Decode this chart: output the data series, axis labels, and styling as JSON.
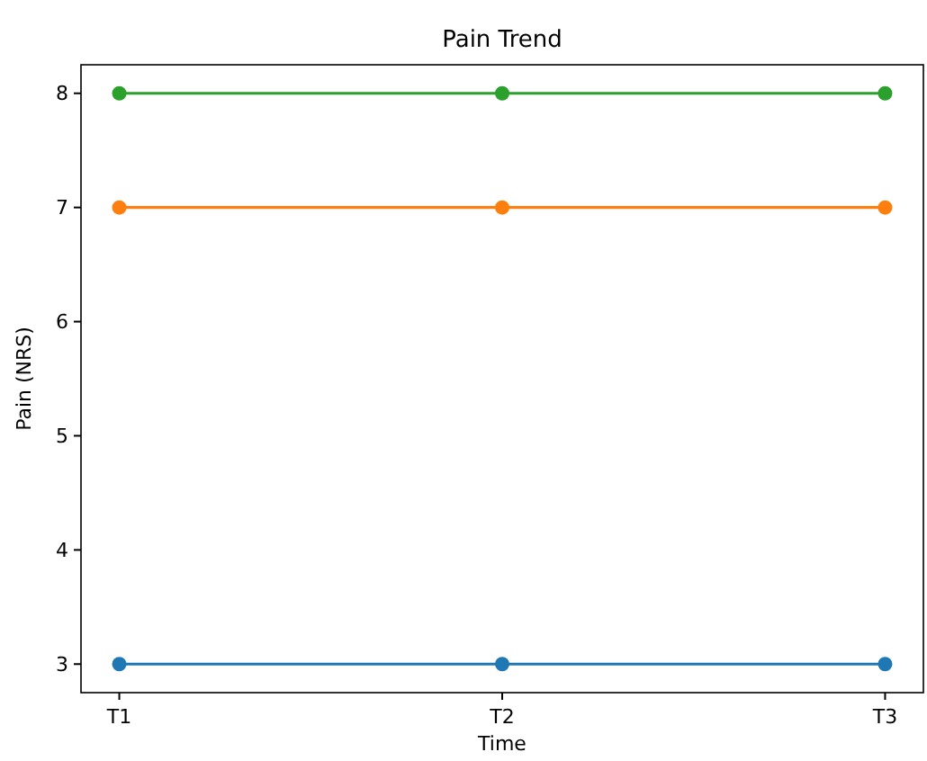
{
  "chart_data": {
    "type": "line",
    "title": "Pain Trend",
    "xlabel": "Time",
    "ylabel": "Pain (NRS)",
    "categories": [
      "T1",
      "T2",
      "T3"
    ],
    "series": [
      {
        "color": "#1f77b4",
        "values": [
          3,
          3,
          3
        ]
      },
      {
        "color": "#ff7f0e",
        "values": [
          7,
          7,
          7
        ]
      },
      {
        "color": "#2ca02c",
        "values": [
          8,
          8,
          8
        ]
      }
    ],
    "ylim": [
      2.75,
      8.25
    ],
    "yticks": [
      3,
      4,
      5,
      6,
      7,
      8
    ],
    "grid": false,
    "marker": "circle",
    "line_style": "solid"
  }
}
